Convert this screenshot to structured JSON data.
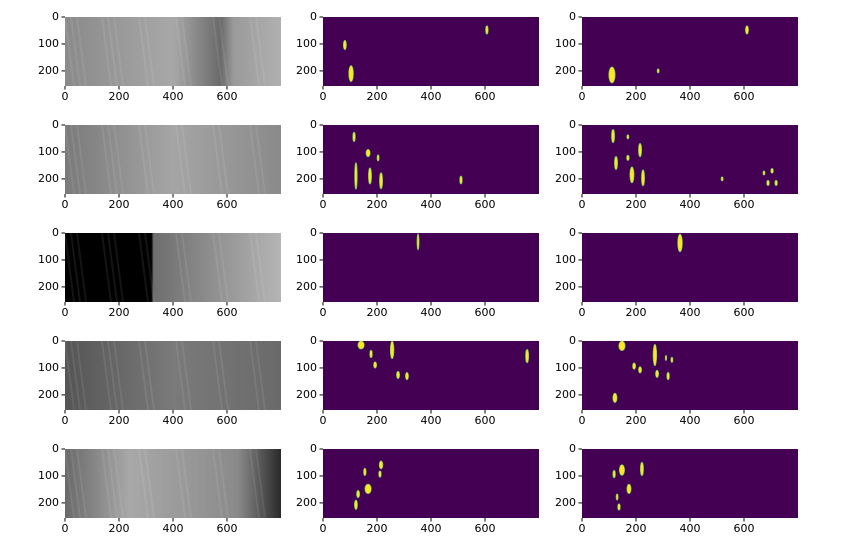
{
  "chart_data": [
    {
      "type": "image",
      "cmap": "gray",
      "xlim": [
        0,
        800
      ],
      "ylim": [
        256,
        0
      ],
      "xticks": [
        0,
        200,
        400,
        600
      ],
      "yticks": [
        0,
        100,
        200
      ]
    },
    {
      "type": "image",
      "cmap": "viridis",
      "xlim": [
        0,
        800
      ],
      "ylim": [
        256,
        0
      ],
      "xticks": [
        0,
        200,
        400,
        600
      ],
      "yticks": [
        0,
        100,
        200
      ]
    },
    {
      "type": "image",
      "cmap": "viridis",
      "xlim": [
        0,
        800
      ],
      "ylim": [
        256,
        0
      ],
      "xticks": [
        0,
        200,
        400,
        600
      ],
      "yticks": [
        0,
        100,
        200
      ]
    },
    {
      "type": "image",
      "cmap": "gray",
      "xlim": [
        0,
        800
      ],
      "ylim": [
        256,
        0
      ],
      "xticks": [
        0,
        200,
        400,
        600
      ],
      "yticks": [
        0,
        100,
        200
      ]
    },
    {
      "type": "image",
      "cmap": "viridis",
      "xlim": [
        0,
        800
      ],
      "ylim": [
        256,
        0
      ],
      "xticks": [
        0,
        200,
        400,
        600
      ],
      "yticks": [
        0,
        100,
        200
      ]
    },
    {
      "type": "image",
      "cmap": "viridis",
      "xlim": [
        0,
        800
      ],
      "ylim": [
        256,
        0
      ],
      "xticks": [
        0,
        200,
        400,
        600
      ],
      "yticks": [
        0,
        100,
        200
      ]
    },
    {
      "type": "image",
      "cmap": "gray",
      "xlim": [
        0,
        800
      ],
      "ylim": [
        256,
        0
      ],
      "xticks": [
        0,
        200,
        400,
        600
      ],
      "yticks": [
        0,
        100,
        200
      ]
    },
    {
      "type": "image",
      "cmap": "viridis",
      "xlim": [
        0,
        800
      ],
      "ylim": [
        256,
        0
      ],
      "xticks": [
        0,
        200,
        400,
        600
      ],
      "yticks": [
        0,
        100,
        200
      ]
    },
    {
      "type": "image",
      "cmap": "viridis",
      "xlim": [
        0,
        800
      ],
      "ylim": [
        256,
        0
      ],
      "xticks": [
        0,
        200,
        400,
        600
      ],
      "yticks": [
        0,
        100,
        200
      ]
    },
    {
      "type": "image",
      "cmap": "gray",
      "xlim": [
        0,
        800
      ],
      "ylim": [
        256,
        0
      ],
      "xticks": [
        0,
        200,
        400,
        600
      ],
      "yticks": [
        0,
        100,
        200
      ]
    },
    {
      "type": "image",
      "cmap": "viridis",
      "xlim": [
        0,
        800
      ],
      "ylim": [
        256,
        0
      ],
      "xticks": [
        0,
        200,
        400,
        600
      ],
      "yticks": [
        0,
        100,
        200
      ]
    },
    {
      "type": "image",
      "cmap": "viridis",
      "xlim": [
        0,
        800
      ],
      "ylim": [
        256,
        0
      ],
      "xticks": [
        0,
        200,
        400,
        600
      ],
      "yticks": [
        0,
        100,
        200
      ]
    },
    {
      "type": "image",
      "cmap": "gray",
      "xlim": [
        0,
        800
      ],
      "ylim": [
        256,
        0
      ],
      "xticks": [
        0,
        200,
        400,
        600
      ],
      "yticks": [
        0,
        100,
        200
      ]
    },
    {
      "type": "image",
      "cmap": "viridis",
      "xlim": [
        0,
        800
      ],
      "ylim": [
        256,
        0
      ],
      "xticks": [
        0,
        200,
        400,
        600
      ],
      "yticks": [
        0,
        100,
        200
      ]
    },
    {
      "type": "image",
      "cmap": "viridis",
      "xlim": [
        0,
        800
      ],
      "ylim": [
        256,
        0
      ],
      "xticks": [
        0,
        200,
        400,
        600
      ],
      "yticks": [
        0,
        100,
        200
      ]
    }
  ]
}
